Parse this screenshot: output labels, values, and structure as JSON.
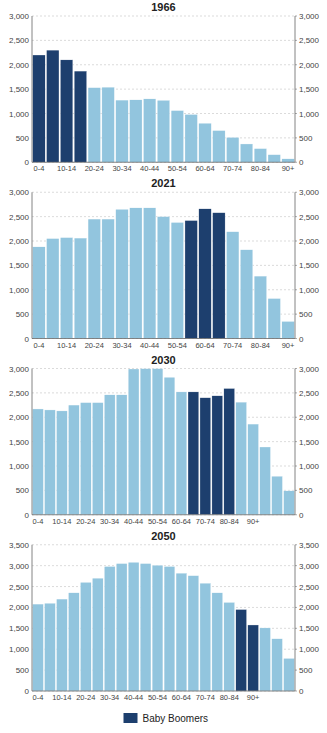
{
  "chart_data": [
    {
      "type": "bar",
      "title": "1966",
      "categories": [
        "0-4",
        null,
        "10-14",
        null,
        "20-24",
        null,
        "30-34",
        null,
        "40-44",
        null,
        "50-54",
        null,
        "60-64",
        null,
        "70-74",
        null,
        "80-84",
        null,
        "90+"
      ],
      "series": [
        {
          "color": "#1d3f6e",
          "values": [
            2200,
            2300,
            2100,
            1870,
            null,
            null,
            null,
            null,
            null,
            null,
            null,
            null,
            null,
            null,
            null,
            null,
            null,
            null,
            null
          ]
        },
        {
          "color": "#92c5de",
          "values": [
            null,
            null,
            null,
            null,
            1530,
            1540,
            1275,
            1280,
            1300,
            1270,
            1060,
            980,
            800,
            650,
            510,
            375,
            280,
            155,
            70
          ]
        }
      ],
      "ylim": [
        0,
        3000
      ],
      "yticks": [
        0,
        500,
        {
          "value": 1000,
          "label": "1,000"
        },
        {
          "value": 1500,
          "label": "1,500"
        },
        {
          "value": 2000,
          "label": "2,000"
        },
        {
          "value": 2500,
          "label": "2,500"
        },
        {
          "value": 3000,
          "label": "3,000"
        }
      ],
      "y2lim": [
        0,
        3000
      ],
      "y2ticks": [
        0,
        500,
        {
          "value": 1000,
          "label": "1,000"
        },
        {
          "value": 1500,
          "label": "1,500"
        },
        {
          "value": 2000,
          "label": "2,000"
        },
        {
          "value": 2500,
          "label": "2,500"
        },
        {
          "value": 3000,
          "label": "3,000"
        }
      ],
      "grid": true
    },
    {
      "type": "bar",
      "title": "2021",
      "categories": [
        "0-4",
        null,
        "10-14",
        null,
        "20-24",
        null,
        "30-34",
        null,
        "40-44",
        null,
        "50-54",
        null,
        "60-64",
        null,
        "70-74",
        null,
        "80-84",
        null,
        "90+"
      ],
      "series": [
        {
          "color": "#1d3f6e",
          "values": [
            null,
            null,
            null,
            null,
            null,
            null,
            null,
            null,
            null,
            null,
            null,
            2420,
            2660,
            2580,
            null,
            null,
            null,
            null,
            null
          ]
        },
        {
          "color": "#92c5de",
          "values": [
            1880,
            2050,
            2070,
            2060,
            2450,
            2450,
            2650,
            2680,
            2680,
            2500,
            2380,
            null,
            null,
            null,
            2190,
            1820,
            1280,
            820,
            350
          ]
        }
      ],
      "ylim": [
        0,
        3000
      ],
      "yticks": [
        0,
        500,
        {
          "value": 1000,
          "label": "1,000"
        },
        {
          "value": 1500,
          "label": "1,500"
        },
        {
          "value": 2000,
          "label": "2,000"
        },
        {
          "value": 2500,
          "label": "2,500"
        },
        {
          "value": 3000,
          "label": "3,000"
        }
      ],
      "y2lim": [
        0,
        3000
      ],
      "y2ticks": [
        0,
        500,
        {
          "value": 1000,
          "label": "1,000"
        },
        {
          "value": 1500,
          "label": "1,500"
        },
        {
          "value": 2000,
          "label": "2,000"
        },
        {
          "value": 2500,
          "label": "2,500"
        },
        {
          "value": 3000,
          "label": "3,000"
        }
      ],
      "grid": true
    },
    {
      "type": "bar",
      "title": "2030",
      "categories": [
        "0-4",
        null,
        "10-14",
        null,
        "20-24",
        null,
        "30-34",
        null,
        "40-44",
        null,
        "50-54",
        null,
        "60-64",
        null,
        "70-74",
        null,
        "80-84",
        null,
        "90+",
        null,
        null,
        null
      ],
      "series": [
        {
          "color": "#1d3f6e",
          "values": [
            null,
            null,
            null,
            null,
            null,
            null,
            null,
            null,
            null,
            null,
            null,
            null,
            null,
            2520,
            2400,
            2440,
            2590,
            null,
            null,
            null,
            null,
            null
          ]
        },
        {
          "color": "#92c5de",
          "values": [
            2170,
            2150,
            2130,
            2250,
            2300,
            2300,
            2460,
            2460,
            2990,
            3000,
            3000,
            2820,
            2520,
            null,
            null,
            null,
            null,
            2310,
            1860,
            1390,
            790,
            490
          ]
        }
      ],
      "ylim": [
        0,
        3000
      ],
      "yticks": [
        0,
        500,
        {
          "value": 1000,
          "label": "1,000"
        },
        {
          "value": 1500,
          "label": "1,500"
        },
        {
          "value": 2000,
          "label": "2,000"
        },
        {
          "value": 2500,
          "label": "2,500"
        },
        {
          "value": 3000,
          "label": "3,000"
        }
      ],
      "y2lim": [
        0,
        3000
      ],
      "y2ticks": [
        0,
        500,
        {
          "value": 1000,
          "label": "1,000"
        },
        {
          "value": 1500,
          "label": "1,500"
        },
        {
          "value": 2000,
          "label": "2,000"
        },
        {
          "value": 2500,
          "label": "2,500"
        },
        {
          "value": 3000,
          "label": "3,000"
        }
      ],
      "grid": true
    },
    {
      "type": "bar",
      "title": "2050",
      "categories": [
        "0-4",
        null,
        "10-14",
        null,
        "20-24",
        null,
        "30-34",
        null,
        "40-44",
        null,
        "50-54",
        null,
        "60-64",
        null,
        "70-74",
        null,
        "80-84",
        null,
        "90+",
        null,
        null,
        null
      ],
      "series": [
        {
          "name": "Baby Boomers",
          "color": "#1d3f6e",
          "values": [
            null,
            null,
            null,
            null,
            null,
            null,
            null,
            null,
            null,
            null,
            null,
            null,
            null,
            null,
            null,
            null,
            null,
            1950,
            1580,
            null,
            null,
            null
          ]
        },
        {
          "color": "#92c5de",
          "values": [
            2080,
            2100,
            2200,
            2350,
            2600,
            2700,
            2980,
            3050,
            3080,
            3050,
            3010,
            2980,
            2820,
            2760,
            2580,
            2350,
            2120,
            null,
            null,
            1510,
            1250,
            780
          ]
        }
      ],
      "ylim": [
        0,
        3500
      ],
      "yticks": [
        0,
        500,
        {
          "value": 1000,
          "label": "1,000"
        },
        {
          "value": 1500,
          "label": "1,500"
        },
        {
          "value": 2000,
          "label": "2,000"
        },
        {
          "value": 2500,
          "label": "2,500"
        },
        {
          "value": 3000,
          "label": "3,000"
        },
        {
          "value": 3500,
          "label": "3,500"
        }
      ],
      "y2lim": [
        0,
        3500
      ],
      "y2ticks": [
        0,
        500,
        {
          "value": 1000,
          "label": "1,000"
        },
        {
          "value": 1500,
          "label": "1,500"
        },
        {
          "value": 2000,
          "label": "2,000"
        },
        {
          "value": 2500,
          "label": "2,500"
        },
        {
          "value": 3000,
          "label": "3,000"
        },
        {
          "value": 3500,
          "label": "3,500"
        }
      ],
      "grid": true,
      "legend": "bottom"
    }
  ]
}
